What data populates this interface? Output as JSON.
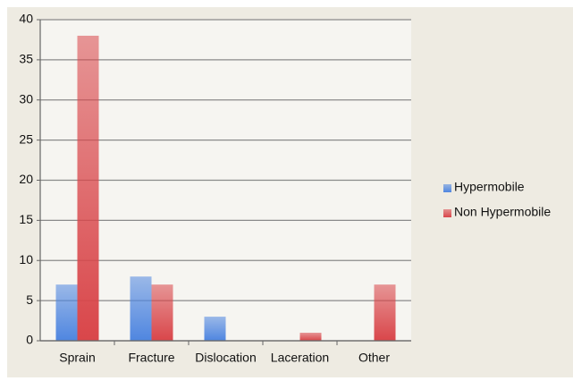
{
  "chart_data": {
    "type": "bar",
    "categories": [
      "Sprain",
      "Fracture",
      "Dislocation",
      "Laceration",
      "Other"
    ],
    "series": [
      {
        "name": "Hypermobile",
        "color": "#4f86e0",
        "values": [
          7,
          8,
          3,
          0,
          0
        ]
      },
      {
        "name": "Non Hypermobile",
        "color": "#d9464a",
        "values": [
          38,
          7,
          0,
          1,
          7
        ]
      }
    ],
    "ylim": [
      0,
      40
    ],
    "yticks": [
      0,
      5,
      10,
      15,
      20,
      25,
      30,
      35,
      40
    ],
    "grid": true,
    "legend": "right"
  }
}
